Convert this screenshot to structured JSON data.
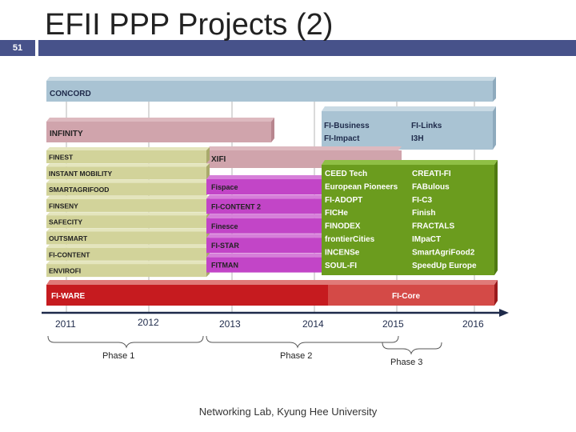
{
  "slide": {
    "number": "51",
    "title": "EFII PPP Projects (2)",
    "footer": "Networking Lab, Kyung Hee University"
  },
  "colors": {
    "header_bar": "#47528a",
    "concord": "#a9c3d3",
    "infinity": "#d0a4ac",
    "phase1_projects": "#d2d39a",
    "phase2_projects": "#c245c7",
    "phase3_projects": "#6b9c1e",
    "fi_ware": "#c61b1f",
    "fi_core": "#d44a47"
  },
  "diagram": {
    "concord": "CONCORD",
    "infinity": "INFINITY",
    "xifi": "XIFI",
    "fi_business": "FI-Business",
    "fi_impact": "FI-Impact",
    "fi_links": "FI-Links",
    "i3h": "I3H",
    "phase1_projects": [
      "FINEST",
      "INSTANT MOBILITY",
      "SMARTAGRIFOOD",
      "FINSENY",
      "SAFECITY",
      "OUTSMART",
      "FI-CONTENT",
      "ENVIROFI"
    ],
    "phase2_projects": [
      "Fispace",
      "FI-CONTENT 2",
      "Finesce",
      "FI-STAR",
      "FITMAN"
    ],
    "phase3_col1": [
      "CEED Tech",
      "European Pioneers",
      "FI-ADOPT",
      "FICHe",
      "FINODEX",
      "frontierCities",
      "INCENSe",
      "SOUL-FI"
    ],
    "phase3_col2": [
      "CREATI-FI",
      "FABulous",
      "FI-C3",
      "Finish",
      "FRACTALS",
      "IMpaCT",
      "SmartAgriFood2",
      "SpeedUp Europe"
    ],
    "fi_ware": "FI-WARE",
    "fi_core": "FI-Core",
    "years": [
      "2011",
      "2012",
      "2013",
      "2014",
      "2015",
      "2016"
    ],
    "phases": [
      "Phase 1",
      "Phase 2",
      "Phase 3"
    ]
  }
}
